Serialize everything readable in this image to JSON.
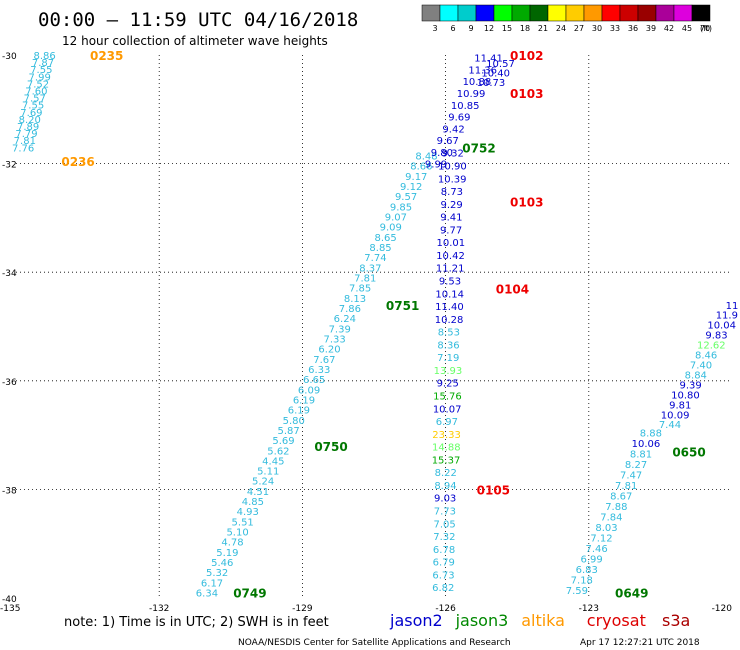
{
  "header": {
    "title": "00:00 – 11:59 UTC 04/16/2018",
    "subtitle": "12 hour collection of altimeter wave heights"
  },
  "colorbar": {
    "labels": [
      "3",
      "6",
      "9",
      "12",
      "15",
      "18",
      "21",
      "24",
      "27",
      "30",
      "33",
      "36",
      "39",
      "42",
      "45",
      "70"
    ],
    "unit": "(ft)",
    "colors": [
      "#808080",
      "#00ffff",
      "#00cccc",
      "#0000ff",
      "#00ff00",
      "#00aa00",
      "#006600",
      "#ffff00",
      "#ffcc00",
      "#ff9900",
      "#ff0000",
      "#cc0000",
      "#990000",
      "#aa0099",
      "#dd00dd",
      "#000000"
    ]
  },
  "footer": {
    "note": "note:  1) Time is in UTC;  2) SWH is in feet",
    "credit": "NOAA/NESDIS Center for Satellite Applications and Research",
    "timestamp": "Apr 17 12:27:21 UTC 2018"
  },
  "legend": [
    {
      "name": "jason2",
      "color": "#0000cc"
    },
    {
      "name": "jason3",
      "color": "#008800"
    },
    {
      "name": "altika",
      "color": "#ff9900"
    },
    {
      "name": "cryosat",
      "color": "#dd0000"
    },
    {
      "name": "s3a",
      "color": "#aa0000"
    }
  ],
  "chart_data": {
    "type": "scatter",
    "title": "00:00 – 11:59 UTC 04/16/2018",
    "subtitle": "12 hour collection of altimeter wave heights",
    "xlabel": "",
    "ylabel": "",
    "xlim": [
      -135,
      -120
    ],
    "ylim": [
      -40,
      -30
    ],
    "xticks": [
      "-135",
      "-132",
      "-129",
      "-126",
      "-123",
      "-120"
    ],
    "yticks": [
      "-30",
      "-32",
      "-34",
      "-36",
      "-38",
      "-40"
    ],
    "grid": true,
    "tracks": [
      {
        "name": "track-1",
        "color": "#33bbdd",
        "x0": -134.4,
        "y0": -30.0,
        "x1": -134.85,
        "y1": -31.7,
        "values": [
          "8.86",
          "7.87",
          "7.55",
          "7.99",
          "7.52",
          "7.60",
          "7.57",
          "7.55",
          "7.69",
          "8.20",
          "7.89",
          "7.79",
          "7.81",
          "7.76"
        ],
        "time_labels": [
          {
            "text": "0235",
            "x": -133.1,
            "y": -30.0,
            "color": "#ff9900"
          },
          {
            "text": "0236",
            "x": -133.7,
            "y": -31.95,
            "color": "#ff9900"
          }
        ]
      },
      {
        "name": "track-2",
        "color": "#33bbdd",
        "x0": -126.4,
        "y0": -31.85,
        "x1": -131.0,
        "y1": -39.9,
        "values": [
          "8.48",
          "8.66",
          "9.17",
          "9.12",
          "9.57",
          "9.85",
          "9.07",
          "9.09",
          "8.65",
          "8.85",
          "7.74",
          "8.37",
          "7.81",
          "7.85",
          "8.13",
          "7.86",
          "6.24",
          "7.39",
          "7.33",
          "6.20",
          "7.67",
          "6.33",
          "6.65",
          "6.09",
          "6.19",
          "6.19",
          "5.80",
          "5.87",
          "5.69",
          "5.62",
          "4.45",
          "5.11",
          "5.24",
          "4.51",
          "4.85",
          "4.93",
          "5.51",
          "5.10",
          "4.78",
          "5.19",
          "5.46",
          "5.32",
          "6.17",
          "6.34"
        ],
        "time_labels": [
          {
            "text": "0751",
            "x": -126.9,
            "y": -34.6,
            "color": "#007700"
          },
          {
            "text": "0750",
            "x": -128.4,
            "y": -37.2,
            "color": "#007700"
          },
          {
            "text": "0749",
            "x": -130.1,
            "y": -39.9,
            "color": "#007700"
          }
        ]
      },
      {
        "name": "track-3",
        "color": "#0000cc",
        "x0": -125.1,
        "y0": -30.05,
        "x1": -126.2,
        "y1": -32.0,
        "values": [
          "11.41",
          "11.36",
          "10.88",
          "10.99",
          "10.85",
          "9.69",
          "9.42",
          "9.67",
          "9.80",
          "9.99"
        ],
        "time_labels": [
          {
            "text": "0102",
            "x": -124.3,
            "y": -30.0,
            "color": "#ee0000"
          },
          {
            "text": "0103",
            "x": -124.3,
            "y": -30.7,
            "color": "#ee0000"
          }
        ]
      },
      {
        "name": "track-4",
        "color": "#0000cc",
        "x0": -124.85,
        "y0": -30.15,
        "x1": -125.05,
        "y1": -30.5,
        "values": [
          "10.57",
          "10.40",
          "10.73"
        ],
        "time_labels": []
      },
      {
        "name": "track-5",
        "color": "#0000cc",
        "x0": -125.85,
        "y0": -31.8,
        "x1": -126.05,
        "y1": -39.8,
        "values": [
          "9.32",
          "10.90",
          "10.39",
          "8.73",
          "9.29",
          "9.41",
          "9.77",
          "10.01",
          "10.42",
          "11.21",
          "9.53",
          "10.14",
          "11.40",
          "10.28",
          "8.53",
          "8.36",
          "7.19",
          "13.93",
          "9.25",
          "15.76",
          "10.07",
          "6.97",
          "23.33",
          "14.88",
          "15.37",
          "8.22",
          "8.94",
          "9.03",
          "7.73",
          "7.05",
          "7.32",
          "6.78",
          "6.79",
          "6.73",
          "6.82"
        ],
        "colors": {
          "13.93": "#66ff66",
          "15.76": "#00aa00",
          "23.33": "#ffcc00",
          "14.88": "#66ff66",
          "15.37": "#00aa00",
          "8.22": "#33bbdd",
          "8.94": "#33bbdd",
          "7.73": "#33bbdd",
          "7.05": "#33bbdd",
          "7.32": "#33bbdd",
          "6.78": "#33bbdd",
          "6.79": "#33bbdd",
          "6.73": "#33bbdd",
          "6.82": "#33bbdd",
          "8.53": "#33bbdd",
          "8.36": "#33bbdd",
          "7.19": "#33bbdd",
          "6.97": "#33bbdd"
        },
        "time_labels": [
          {
            "text": "0752",
            "x": -125.3,
            "y": -31.7,
            "color": "#007700"
          },
          {
            "text": "0103",
            "x": -124.3,
            "y": -32.7,
            "color": "#ee0000"
          },
          {
            "text": "0104",
            "x": -124.6,
            "y": -34.3,
            "color": "#ee0000"
          },
          {
            "text": "0105",
            "x": -125.0,
            "y": -38.0,
            "color": "#ee0000"
          }
        ]
      },
      {
        "name": "track-6",
        "color": "#0000cc",
        "x0": -120.0,
        "y0": -34.6,
        "x1": -121.3,
        "y1": -36.8,
        "values": [
          "11",
          "11.9",
          "10.04",
          "9.83",
          "12.62",
          "8.46",
          "7.40",
          "8.84",
          "9.39",
          "10.80",
          "9.81",
          "10.09",
          "7.44"
        ],
        "colors": {
          "12.62": "#66ff66",
          "8.46": "#33bbdd",
          "7.40": "#33bbdd",
          "8.84": "#33bbdd",
          "7.44": "#33bbdd"
        },
        "time_labels": []
      },
      {
        "name": "track-7",
        "color": "#33bbdd",
        "x0": -121.7,
        "y0": -36.95,
        "x1": -123.25,
        "y1": -39.85,
        "values": [
          "8.88",
          "10.06",
          "8.81",
          "8.27",
          "7.47",
          "7.81",
          "8.67",
          "7.88",
          "7.84",
          "8.03",
          "7.12",
          "7.46",
          "6.99",
          "6.83",
          "7.18",
          "7.59"
        ],
        "colors": {
          "10.06": "#0000cc"
        },
        "time_labels": [
          {
            "text": "0650",
            "x": -120.9,
            "y": -37.3,
            "color": "#007700"
          },
          {
            "text": "0649",
            "x": -122.1,
            "y": -39.9,
            "color": "#007700"
          }
        ]
      }
    ]
  }
}
